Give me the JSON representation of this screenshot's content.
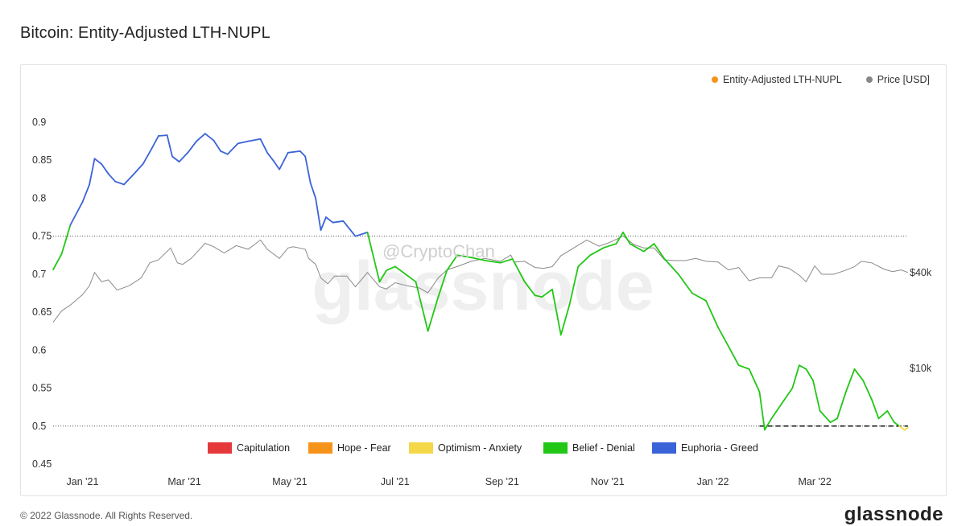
{
  "title": "Bitcoin: Entity-Adjusted LTH-NUPL",
  "legend_top": [
    {
      "label": "Entity-Adjusted LTH-NUPL",
      "color": "#f7931a"
    },
    {
      "label": "Price [USD]",
      "color": "#888888"
    }
  ],
  "watermark": {
    "brand": "glassnode",
    "handle": "@CryptoChan"
  },
  "footer": {
    "copyright": "© 2022 Glassnode. All Rights Reserved.",
    "brand": "glassnode"
  },
  "chart_data": {
    "type": "line",
    "title": "Bitcoin: Entity-Adjusted LTH-NUPL",
    "x_ticks": [
      "Jan '21",
      "Mar '21",
      "May '21",
      "Jul '21",
      "Sep '21",
      "Nov '21",
      "Jan '22",
      "Mar '22"
    ],
    "x_range": [
      "2020-12-15",
      "2022-04-24"
    ],
    "y_left": {
      "ticks": [
        "0.9",
        "0.85",
        "0.8",
        "0.75",
        "0.7",
        "0.65",
        "0.6",
        "0.55",
        "0.5",
        "0.45"
      ],
      "range": [
        0.45,
        0.9
      ]
    },
    "y_right": {
      "ticks": [
        "$40k",
        "$10k"
      ],
      "scale": "log"
    },
    "grid": false,
    "reference_lines": [
      0.75,
      0.5
    ],
    "zones": [
      {
        "label": "Capitulation",
        "color": "#e5383b"
      },
      {
        "label": "Hope - Fear",
        "color": "#f7931a"
      },
      {
        "label": "Optimism - Anxiety",
        "color": "#f4d84a"
      },
      {
        "label": "Belief - Denial",
        "color": "#22c716"
      },
      {
        "label": "Euphoria - Greed",
        "color": "#3b63d8"
      }
    ],
    "series": [
      {
        "name": "Entity-Adjusted LTH-NUPL",
        "points": [
          [
            "2020-12-15",
            0.706
          ],
          [
            "2020-12-20",
            0.727
          ],
          [
            "2020-12-25",
            0.765
          ],
          [
            "2021-01-01",
            0.795
          ],
          [
            "2021-01-05",
            0.818
          ],
          [
            "2021-01-08",
            0.852
          ],
          [
            "2021-01-12",
            0.845
          ],
          [
            "2021-01-16",
            0.832
          ],
          [
            "2021-01-20",
            0.822
          ],
          [
            "2021-01-25",
            0.818
          ],
          [
            "2021-01-30",
            0.83
          ],
          [
            "2021-02-05",
            0.845
          ],
          [
            "2021-02-10",
            0.865
          ],
          [
            "2021-02-14",
            0.882
          ],
          [
            "2021-02-19",
            0.883
          ],
          [
            "2021-02-22",
            0.855
          ],
          [
            "2021-02-26",
            0.848
          ],
          [
            "2021-03-03",
            0.86
          ],
          [
            "2021-03-08",
            0.875
          ],
          [
            "2021-03-13",
            0.885
          ],
          [
            "2021-03-18",
            0.876
          ],
          [
            "2021-03-22",
            0.862
          ],
          [
            "2021-03-26",
            0.858
          ],
          [
            "2021-04-01",
            0.872
          ],
          [
            "2021-04-07",
            0.875
          ],
          [
            "2021-04-14",
            0.878
          ],
          [
            "2021-04-18",
            0.86
          ],
          [
            "2021-04-22",
            0.848
          ],
          [
            "2021-04-25",
            0.838
          ],
          [
            "2021-04-30",
            0.86
          ],
          [
            "2021-05-07",
            0.862
          ],
          [
            "2021-05-10",
            0.855
          ],
          [
            "2021-05-13",
            0.82
          ],
          [
            "2021-05-16",
            0.8
          ],
          [
            "2021-05-19",
            0.758
          ],
          [
            "2021-05-22",
            0.775
          ],
          [
            "2021-05-26",
            0.768
          ],
          [
            "2021-06-01",
            0.77
          ],
          [
            "2021-06-08",
            0.75
          ],
          [
            "2021-06-15",
            0.755
          ],
          [
            "2021-06-22",
            0.69
          ],
          [
            "2021-06-26",
            0.705
          ],
          [
            "2021-07-01",
            0.71
          ],
          [
            "2021-07-07",
            0.7
          ],
          [
            "2021-07-13",
            0.69
          ],
          [
            "2021-07-20",
            0.625
          ],
          [
            "2021-07-26",
            0.67
          ],
          [
            "2021-07-31",
            0.705
          ],
          [
            "2021-08-06",
            0.725
          ],
          [
            "2021-08-14",
            0.722
          ],
          [
            "2021-08-22",
            0.718
          ],
          [
            "2021-08-31",
            0.715
          ],
          [
            "2021-09-07",
            0.72
          ],
          [
            "2021-09-14",
            0.69
          ],
          [
            "2021-09-20",
            0.672
          ],
          [
            "2021-09-24",
            0.67
          ],
          [
            "2021-09-30",
            0.68
          ],
          [
            "2021-10-05",
            0.62
          ],
          [
            "2021-10-10",
            0.66
          ],
          [
            "2021-10-15",
            0.71
          ],
          [
            "2021-10-22",
            0.725
          ],
          [
            "2021-10-30",
            0.735
          ],
          [
            "2021-11-06",
            0.74
          ],
          [
            "2021-11-10",
            0.755
          ],
          [
            "2021-11-14",
            0.74
          ],
          [
            "2021-11-22",
            0.73
          ],
          [
            "2021-11-28",
            0.74
          ],
          [
            "2021-12-04",
            0.72
          ],
          [
            "2021-12-12",
            0.7
          ],
          [
            "2021-12-20",
            0.675
          ],
          [
            "2021-12-28",
            0.665
          ],
          [
            "2022-01-04",
            0.63
          ],
          [
            "2022-01-10",
            0.605
          ],
          [
            "2022-01-16",
            0.58
          ],
          [
            "2022-01-22",
            0.575
          ],
          [
            "2022-01-28",
            0.545
          ],
          [
            "2022-01-31",
            0.495
          ],
          [
            "2022-02-04",
            0.51
          ],
          [
            "2022-02-10",
            0.53
          ],
          [
            "2022-02-16",
            0.55
          ],
          [
            "2022-02-20",
            0.58
          ],
          [
            "2022-02-24",
            0.575
          ],
          [
            "2022-02-28",
            0.56
          ],
          [
            "2022-03-04",
            0.52
          ],
          [
            "2022-03-10",
            0.505
          ],
          [
            "2022-03-14",
            0.51
          ],
          [
            "2022-03-19",
            0.545
          ],
          [
            "2022-03-24",
            0.575
          ],
          [
            "2022-03-29",
            0.56
          ],
          [
            "2022-04-03",
            0.535
          ],
          [
            "2022-04-07",
            0.51
          ],
          [
            "2022-04-12",
            0.52
          ],
          [
            "2022-04-16",
            0.505
          ],
          [
            "2022-04-19",
            0.5
          ],
          [
            "2022-04-22",
            0.495
          ],
          [
            "2022-04-24",
            0.498
          ]
        ]
      },
      {
        "name": "Price [USD]",
        "points": [
          [
            "2020-12-15",
            19500
          ],
          [
            "2020-12-20",
            23000
          ],
          [
            "2020-12-25",
            25000
          ],
          [
            "2021-01-01",
            29000
          ],
          [
            "2021-01-05",
            33000
          ],
          [
            "2021-01-08",
            40000
          ],
          [
            "2021-01-12",
            35000
          ],
          [
            "2021-01-16",
            36000
          ],
          [
            "2021-01-21",
            31000
          ],
          [
            "2021-01-28",
            33000
          ],
          [
            "2021-02-04",
            37000
          ],
          [
            "2021-02-09",
            46000
          ],
          [
            "2021-02-14",
            48000
          ],
          [
            "2021-02-21",
            57000
          ],
          [
            "2021-02-25",
            46000
          ],
          [
            "2021-02-28",
            45000
          ],
          [
            "2021-03-05",
            49000
          ],
          [
            "2021-03-13",
            61000
          ],
          [
            "2021-03-18",
            58000
          ],
          [
            "2021-03-24",
            53000
          ],
          [
            "2021-03-31",
            59000
          ],
          [
            "2021-04-07",
            56000
          ],
          [
            "2021-04-14",
            64000
          ],
          [
            "2021-04-18",
            56000
          ],
          [
            "2021-04-25",
            49000
          ],
          [
            "2021-04-30",
            57000
          ],
          [
            "2021-05-03",
            58000
          ],
          [
            "2021-05-10",
            56000
          ],
          [
            "2021-05-12",
            49000
          ],
          [
            "2021-05-16",
            45000
          ],
          [
            "2021-05-19",
            37000
          ],
          [
            "2021-05-23",
            34000
          ],
          [
            "2021-05-27",
            38000
          ],
          [
            "2021-06-03",
            38000
          ],
          [
            "2021-06-08",
            32500
          ],
          [
            "2021-06-15",
            40000
          ],
          [
            "2021-06-22",
            32500
          ],
          [
            "2021-06-26",
            31500
          ],
          [
            "2021-07-01",
            34500
          ],
          [
            "2021-07-08",
            33000
          ],
          [
            "2021-07-15",
            32000
          ],
          [
            "2021-07-20",
            29800
          ],
          [
            "2021-07-26",
            37000
          ],
          [
            "2021-07-31",
            41500
          ],
          [
            "2021-08-07",
            44000
          ],
          [
            "2021-08-14",
            47000
          ],
          [
            "2021-08-22",
            49000
          ],
          [
            "2021-08-31",
            47000
          ],
          [
            "2021-09-06",
            51500
          ],
          [
            "2021-09-08",
            46500
          ],
          [
            "2021-09-14",
            47000
          ],
          [
            "2021-09-20",
            43000
          ],
          [
            "2021-09-25",
            42500
          ],
          [
            "2021-09-30",
            43500
          ],
          [
            "2021-10-05",
            51000
          ],
          [
            "2021-10-10",
            55000
          ],
          [
            "2021-10-20",
            64000
          ],
          [
            "2021-10-27",
            58500
          ],
          [
            "2021-11-01",
            61000
          ],
          [
            "2021-11-08",
            66000
          ],
          [
            "2021-11-10",
            68000
          ],
          [
            "2021-11-16",
            60000
          ],
          [
            "2021-11-22",
            57000
          ],
          [
            "2021-11-28",
            57000
          ],
          [
            "2021-12-04",
            48000
          ],
          [
            "2021-12-10",
            47500
          ],
          [
            "2021-12-16",
            47500
          ],
          [
            "2021-12-22",
            49000
          ],
          [
            "2021-12-28",
            47000
          ],
          [
            "2022-01-04",
            46500
          ],
          [
            "2022-01-10",
            41500
          ],
          [
            "2022-01-16",
            43000
          ],
          [
            "2022-01-22",
            35500
          ],
          [
            "2022-01-28",
            37000
          ],
          [
            "2022-02-04",
            37000
          ],
          [
            "2022-02-08",
            44000
          ],
          [
            "2022-02-14",
            42500
          ],
          [
            "2022-02-20",
            38500
          ],
          [
            "2022-02-24",
            35000
          ],
          [
            "2022-03-01",
            44000
          ],
          [
            "2022-03-05",
            39000
          ],
          [
            "2022-03-12",
            39000
          ],
          [
            "2022-03-18",
            41000
          ],
          [
            "2022-03-24",
            43500
          ],
          [
            "2022-03-28",
            47000
          ],
          [
            "2022-04-03",
            46000
          ],
          [
            "2022-04-10",
            42000
          ],
          [
            "2022-04-15",
            40500
          ],
          [
            "2022-04-20",
            41500
          ],
          [
            "2022-04-24",
            40000
          ]
        ]
      }
    ]
  }
}
